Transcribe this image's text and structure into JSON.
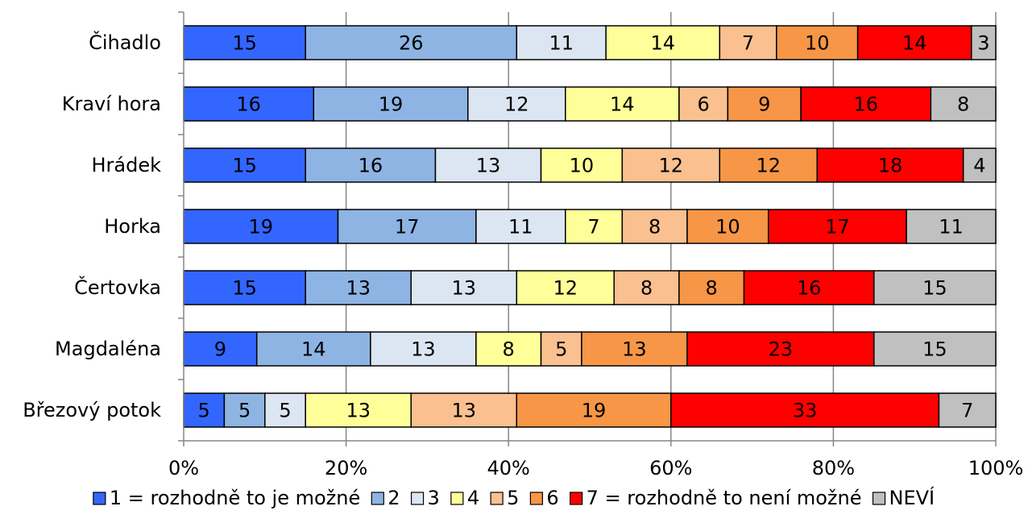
{
  "chart_data": {
    "type": "bar",
    "orientation": "horizontal",
    "stacked": true,
    "normalized_percent": true,
    "categories": [
      "Čihadlo",
      "Kraví hora",
      "Hrádek",
      "Horka",
      "Čertovka",
      "Magdaléna",
      "Březový potok"
    ],
    "series": [
      {
        "name": "1 = rozhodně to je možné",
        "color": "#3366FF",
        "values": [
          15,
          16,
          15,
          19,
          15,
          9,
          5
        ]
      },
      {
        "name": "2",
        "color": "#8EB4E3",
        "values": [
          26,
          19,
          16,
          17,
          13,
          14,
          5
        ]
      },
      {
        "name": "3",
        "color": "#DCE6F2",
        "values": [
          11,
          12,
          13,
          11,
          13,
          13,
          5
        ]
      },
      {
        "name": "4",
        "color": "#FFFF99",
        "values": [
          14,
          14,
          10,
          7,
          12,
          8,
          13
        ]
      },
      {
        "name": "5",
        "color": "#FAC090",
        "values": [
          7,
          6,
          12,
          8,
          8,
          5,
          13
        ]
      },
      {
        "name": "6",
        "color": "#F79646",
        "values": [
          10,
          9,
          12,
          10,
          8,
          13,
          19
        ]
      },
      {
        "name": "7 = rozhodně to není možné",
        "color": "#FF0000",
        "values": [
          14,
          16,
          18,
          17,
          16,
          23,
          33
        ]
      },
      {
        "name": "NEVÍ",
        "color": "#C0C0C0",
        "values": [
          3,
          8,
          4,
          11,
          15,
          15,
          7
        ]
      }
    ],
    "x_ticks": [
      "0%",
      "20%",
      "40%",
      "60%",
      "80%",
      "100%"
    ],
    "xlim": [
      0,
      100
    ],
    "grid": true,
    "legend_position": "bottom"
  }
}
